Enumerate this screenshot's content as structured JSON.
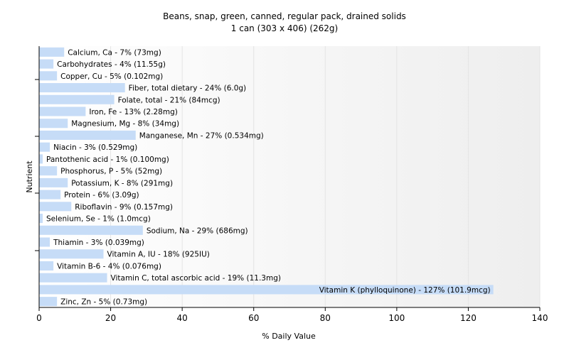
{
  "chart_data": {
    "type": "bar",
    "orientation": "horizontal",
    "title": "Beans, snap, green, canned, regular pack, drained solids",
    "subtitle": "1 can (303 x 406) (262g)",
    "xlabel": "% Daily Value",
    "ylabel": "Nutrient",
    "xlim": [
      0,
      140
    ],
    "xticks": [
      "0",
      "20",
      "40",
      "60",
      "80",
      "100",
      "120",
      "140"
    ],
    "grid": true,
    "bar_color": "#c6dcf7",
    "categories": [
      "Calcium, Ca",
      "Carbohydrates",
      "Copper, Cu",
      "Fiber, total dietary",
      "Folate, total",
      "Iron, Fe",
      "Magnesium, Mg",
      "Manganese, Mn",
      "Niacin",
      "Pantothenic acid",
      "Phosphorus, P",
      "Potassium, K",
      "Protein",
      "Riboflavin",
      "Selenium, Se",
      "Sodium, Na",
      "Thiamin",
      "Vitamin A, IU",
      "Vitamin B-6",
      "Vitamin C, total ascorbic acid",
      "Vitamin K (phylloquinone)",
      "Zinc, Zn"
    ],
    "values": [
      7,
      4,
      5,
      24,
      21,
      13,
      8,
      27,
      3,
      1,
      5,
      8,
      6,
      9,
      1,
      29,
      3,
      18,
      4,
      19,
      127,
      5
    ],
    "labels": [
      "Calcium, Ca - 7% (73mg)",
      "Carbohydrates - 4% (11.55g)",
      "Copper, Cu - 5% (0.102mg)",
      "Fiber, total dietary - 24% (6.0g)",
      "Folate, total - 21% (84mcg)",
      "Iron, Fe - 13% (2.28mg)",
      "Magnesium, Mg - 8% (34mg)",
      "Manganese, Mn - 27% (0.534mg)",
      "Niacin - 3% (0.529mg)",
      "Pantothenic acid - 1% (0.100mg)",
      "Phosphorus, P - 5% (52mg)",
      "Potassium, K - 8% (291mg)",
      "Protein - 6% (3.09g)",
      "Riboflavin - 9% (0.157mg)",
      "Selenium, Se - 1% (1.0mcg)",
      "Sodium, Na - 29% (686mg)",
      "Thiamin - 3% (0.039mg)",
      "Vitamin A, IU - 18% (925IU)",
      "Vitamin B-6 - 4% (0.076mg)",
      "Vitamin C, total ascorbic acid - 19% (11.3mg)",
      "Vitamin K (phylloquinone) - 127% (101.9mcg)",
      "Zinc, Zn - 5% (0.73mg)"
    ]
  }
}
